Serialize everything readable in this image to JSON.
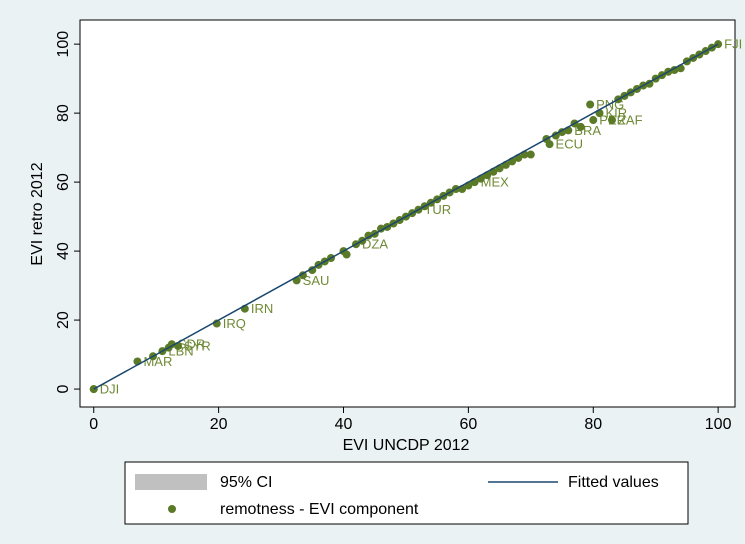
{
  "chart_data": {
    "type": "scatter",
    "x_label": "EVI UNCDP 2012",
    "y_label": "EVI retro 2012",
    "xlim": [
      -2.2,
      102.7
    ],
    "ylim": [
      -5.2,
      107
    ],
    "xticks": [
      0,
      20,
      40,
      60,
      80,
      100
    ],
    "yticks": [
      0,
      20,
      40,
      60,
      80,
      100
    ],
    "ci": {
      "name": "95% CI",
      "color": "#c0c0c0"
    },
    "fit": {
      "name": "Fitted values",
      "color": "#1a476f",
      "x": [
        0,
        100
      ],
      "y": [
        0,
        100
      ]
    },
    "points": {
      "name": "remotness - EVI component",
      "color": "#5b7a27",
      "label_color": "#6f8a35",
      "x": [
        0,
        0,
        7,
        9.5,
        11,
        12,
        12.5,
        13.5,
        19.7,
        24.2,
        32.5,
        33.5,
        35,
        36,
        37,
        38,
        40,
        40.5,
        42,
        43,
        44,
        45,
        46,
        47,
        48,
        49,
        50,
        51,
        52,
        53,
        54,
        55,
        56,
        57,
        58,
        59,
        60,
        61,
        62,
        63,
        64,
        65,
        66,
        67,
        68,
        69,
        70,
        72.5,
        73,
        74,
        75,
        76,
        77,
        78,
        79.5,
        80,
        81,
        83,
        84,
        85,
        86,
        87,
        88,
        89,
        90,
        91,
        92,
        93,
        94,
        95,
        96,
        97,
        98,
        99,
        100
      ],
      "y": [
        0,
        0,
        8,
        9.5,
        11,
        12,
        13,
        12.5,
        19,
        23.3,
        31.5,
        33,
        34.5,
        36,
        37,
        38,
        40,
        39,
        42,
        43,
        44.5,
        45,
        46.5,
        47,
        48,
        49,
        50,
        51,
        52,
        53,
        54,
        55,
        56,
        57,
        58,
        58,
        59,
        60,
        61,
        62,
        63,
        64,
        65,
        66,
        67,
        68,
        68,
        72.5,
        71,
        73.5,
        74.5,
        75,
        77,
        76,
        82.5,
        78,
        80,
        78,
        84,
        85,
        86,
        87,
        88,
        88.5,
        90,
        91,
        92,
        92.5,
        93,
        95,
        96,
        97,
        98,
        99,
        100
      ],
      "labels": [
        "DJI",
        null,
        "MAR",
        null,
        "LBN",
        null,
        "SDR",
        "SYR",
        "IRQ",
        "IRN",
        "SAU",
        null,
        null,
        null,
        null,
        null,
        null,
        null,
        "DZA",
        null,
        null,
        null,
        null,
        null,
        null,
        null,
        null,
        null,
        "TUR",
        null,
        null,
        null,
        null,
        null,
        null,
        null,
        null,
        "MEX",
        null,
        null,
        null,
        null,
        null,
        null,
        null,
        null,
        null,
        null,
        "ECU",
        null,
        null,
        "BRA",
        null,
        null,
        "PNG",
        "PER",
        "KIR",
        "ZAF",
        null,
        null,
        null,
        null,
        null,
        null,
        null,
        null,
        null,
        null,
        null,
        null,
        null,
        null,
        null,
        null,
        "FJI"
      ]
    }
  }
}
